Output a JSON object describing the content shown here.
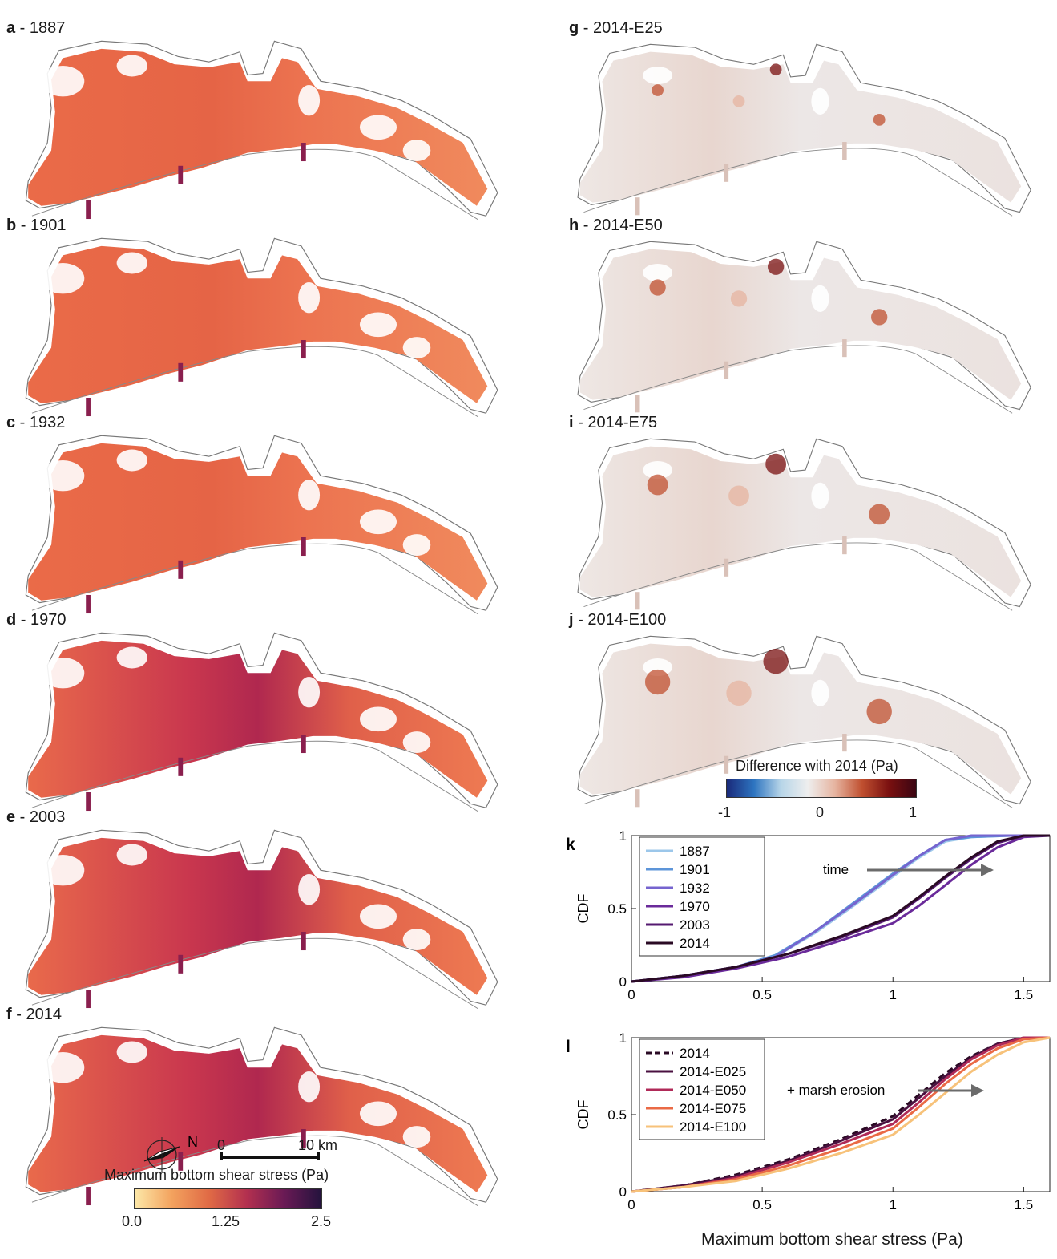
{
  "left_panels": [
    {
      "letter": "a",
      "sep": " - ",
      "year": "1887"
    },
    {
      "letter": "b",
      "sep": " - ",
      "year": "1901"
    },
    {
      "letter": "c",
      "sep": " - ",
      "year": "1932"
    },
    {
      "letter": "d",
      "sep": " - ",
      "year": "1970"
    },
    {
      "letter": "e",
      "sep": " - ",
      "year": "2003"
    },
    {
      "letter": "f",
      "sep": " - ",
      "year": "2014"
    }
  ],
  "right_panels": [
    {
      "letter": "g",
      "sep": " - ",
      "year": "2014-E25"
    },
    {
      "letter": "h",
      "sep": " - ",
      "year": "2014-E50"
    },
    {
      "letter": "i",
      "sep": " - ",
      "year": "2014-E75"
    },
    {
      "letter": "j",
      "sep": " - ",
      "year": "2014-E100"
    }
  ],
  "colorbar_stress": {
    "title": "Maximum bottom shear stress (Pa)",
    "ticks": [
      "0.0",
      "1.25",
      "2.5"
    ],
    "colors": [
      "#fce8a8",
      "#f3a25e",
      "#e06a45",
      "#b3304f",
      "#6a1a55",
      "#24133d"
    ]
  },
  "colorbar_diff": {
    "title": "Difference with 2014 (Pa)",
    "ticks": [
      "-1",
      "0",
      "1"
    ],
    "colors": [
      "#1a2a7a",
      "#2d74c0",
      "#b7d5e8",
      "#eeeeee",
      "#e6b4a0",
      "#c05030",
      "#7a1010",
      "#3a0512"
    ]
  },
  "north_label": "N",
  "scale_bar": {
    "ticks": [
      "0",
      "10 km"
    ]
  },
  "chart_k": {
    "letter": "k",
    "ylabel": "CDF",
    "annotation": "time",
    "x_ticks": [
      "0",
      "0.5",
      "1",
      "1.5"
    ],
    "y_ticks": [
      "0",
      "0.5",
      "1"
    ]
  },
  "chart_l": {
    "letter": "l",
    "ylabel": "CDF",
    "annotation": "+ marsh erosion",
    "x_ticks": [
      "0",
      "0.5",
      "1",
      "1.5"
    ],
    "y_ticks": [
      "0",
      "0.5",
      "1"
    ]
  },
  "shared_xlabel": "Maximum bottom shear stress (Pa)",
  "chart_data": [
    {
      "type": "line",
      "xlim": [
        0,
        1.6
      ],
      "ylim": [
        0,
        1
      ],
      "legend_position": "top-left",
      "series": [
        {
          "name": "1887",
          "color": "#9cc7ea",
          "x": [
            0,
            0.2,
            0.4,
            0.55,
            0.7,
            0.85,
            1.0,
            1.1,
            1.2,
            1.3,
            1.45,
            1.6
          ],
          "y": [
            0,
            0.04,
            0.1,
            0.17,
            0.33,
            0.52,
            0.72,
            0.85,
            0.96,
            0.99,
            1.0,
            1.0
          ]
        },
        {
          "name": "1901",
          "color": "#5d95d9",
          "x": [
            0,
            0.2,
            0.4,
            0.55,
            0.7,
            0.85,
            1.0,
            1.1,
            1.2,
            1.3,
            1.45,
            1.6
          ],
          "y": [
            0,
            0.04,
            0.1,
            0.18,
            0.34,
            0.54,
            0.74,
            0.86,
            0.97,
            0.99,
            1.0,
            1.0
          ]
        },
        {
          "name": "1932",
          "color": "#7664cf",
          "x": [
            0,
            0.2,
            0.4,
            0.55,
            0.7,
            0.85,
            1.0,
            1.1,
            1.2,
            1.3,
            1.45,
            1.6
          ],
          "y": [
            0,
            0.04,
            0.1,
            0.17,
            0.34,
            0.53,
            0.73,
            0.86,
            0.97,
            1.0,
            1.0,
            1.0
          ]
        },
        {
          "name": "1970",
          "color": "#6a2a9a",
          "x": [
            0,
            0.2,
            0.4,
            0.6,
            0.8,
            1.0,
            1.1,
            1.2,
            1.3,
            1.4,
            1.5,
            1.6
          ],
          "y": [
            0,
            0.03,
            0.09,
            0.17,
            0.28,
            0.4,
            0.52,
            0.66,
            0.8,
            0.92,
            0.99,
            1.0
          ]
        },
        {
          "name": "2003",
          "color": "#551a70",
          "x": [
            0,
            0.2,
            0.4,
            0.6,
            0.8,
            1.0,
            1.1,
            1.2,
            1.3,
            1.4,
            1.5,
            1.6
          ],
          "y": [
            0,
            0.04,
            0.1,
            0.19,
            0.3,
            0.44,
            0.57,
            0.71,
            0.84,
            0.95,
            1.0,
            1.0
          ]
        },
        {
          "name": "2014",
          "color": "#2a0a24",
          "x": [
            0,
            0.2,
            0.4,
            0.6,
            0.8,
            1.0,
            1.1,
            1.2,
            1.3,
            1.4,
            1.5,
            1.6
          ],
          "y": [
            0,
            0.04,
            0.1,
            0.19,
            0.31,
            0.45,
            0.58,
            0.72,
            0.85,
            0.96,
            1.0,
            1.0
          ]
        }
      ]
    },
    {
      "type": "line",
      "xlim": [
        0,
        1.6
      ],
      "ylim": [
        0,
        1
      ],
      "legend_position": "top-left",
      "series": [
        {
          "name": "2014",
          "color": "#2a0a24",
          "dash": true,
          "x": [
            0,
            0.2,
            0.4,
            0.6,
            0.8,
            1.0,
            1.1,
            1.2,
            1.3,
            1.4,
            1.5,
            1.6
          ],
          "y": [
            0,
            0.04,
            0.11,
            0.21,
            0.34,
            0.49,
            0.63,
            0.77,
            0.88,
            0.96,
            1.0,
            1.0
          ]
        },
        {
          "name": "2014-E025",
          "color": "#4a1040",
          "x": [
            0,
            0.2,
            0.4,
            0.6,
            0.8,
            1.0,
            1.1,
            1.2,
            1.3,
            1.4,
            1.5,
            1.6
          ],
          "y": [
            0,
            0.04,
            0.1,
            0.2,
            0.33,
            0.47,
            0.61,
            0.75,
            0.87,
            0.96,
            1.0,
            1.0
          ]
        },
        {
          "name": "2014-E050",
          "color": "#b02a58",
          "x": [
            0,
            0.2,
            0.4,
            0.6,
            0.8,
            1.0,
            1.1,
            1.2,
            1.3,
            1.4,
            1.5,
            1.6
          ],
          "y": [
            0,
            0.03,
            0.09,
            0.19,
            0.31,
            0.44,
            0.58,
            0.73,
            0.86,
            0.95,
            1.0,
            1.0
          ]
        },
        {
          "name": "2014-E075",
          "color": "#ea6a45",
          "x": [
            0,
            0.2,
            0.4,
            0.6,
            0.8,
            1.0,
            1.1,
            1.2,
            1.3,
            1.4,
            1.5,
            1.6
          ],
          "y": [
            0,
            0.03,
            0.08,
            0.17,
            0.28,
            0.41,
            0.55,
            0.7,
            0.83,
            0.93,
            0.99,
            1.0
          ]
        },
        {
          "name": "2014-E100",
          "color": "#f7c27a",
          "x": [
            0,
            0.2,
            0.4,
            0.6,
            0.8,
            1.0,
            1.1,
            1.2,
            1.3,
            1.4,
            1.5,
            1.6
          ],
          "y": [
            0,
            0.03,
            0.07,
            0.15,
            0.25,
            0.37,
            0.5,
            0.64,
            0.78,
            0.89,
            0.97,
            1.0
          ]
        }
      ]
    }
  ]
}
